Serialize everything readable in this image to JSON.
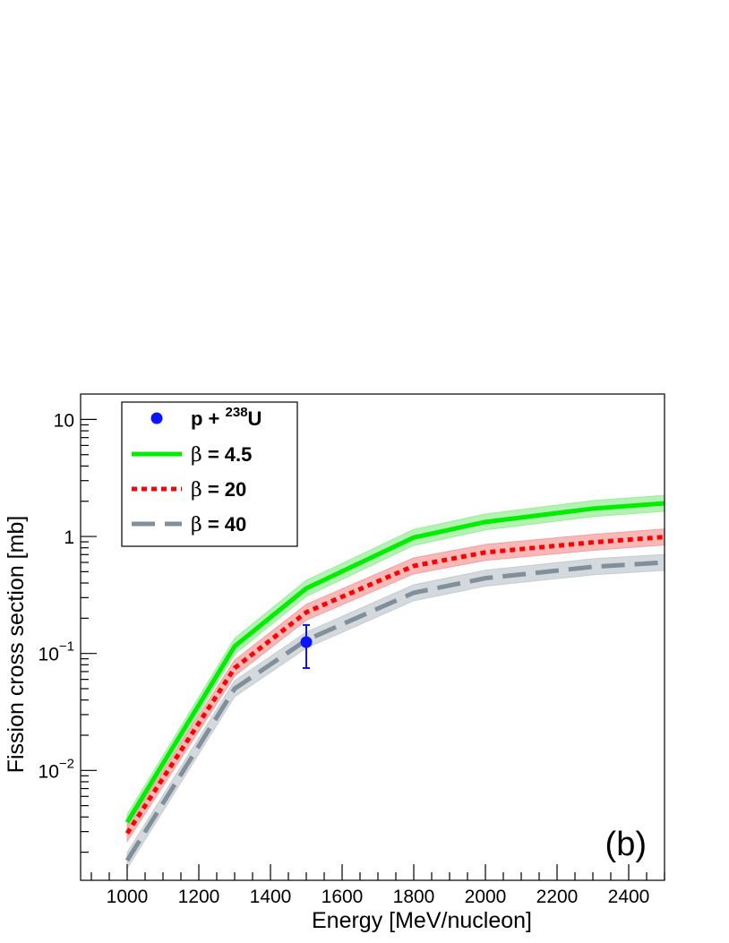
{
  "chart_data": {
    "type": "line",
    "xlabel": "Energy [MeV/nucleon]",
    "ylabel": "Fission cross section [mb]",
    "panel_label": "(b)",
    "xlim": [
      870,
      2500
    ],
    "ylim": [
      0.00115,
      16.5
    ],
    "y_scale": "log",
    "grid": false,
    "legend_position": "top-left",
    "x_ticks": [
      1000,
      1200,
      1400,
      1600,
      1800,
      2000,
      2200,
      2400
    ],
    "x_tick_labels": [
      "1000",
      "1200",
      "1400",
      "1600",
      "1800",
      "2000",
      "2200",
      "2400"
    ],
    "y_ticks": [
      {
        "value": 10,
        "base": "10",
        "exp": ""
      },
      {
        "value": 1,
        "base": "1",
        "exp": ""
      },
      {
        "value": 0.1,
        "base": "10",
        "exp": "−1"
      },
      {
        "value": 0.01,
        "base": "10",
        "exp": "−2"
      }
    ],
    "x": [
      1000,
      1300,
      1500,
      1800,
      2000,
      2300,
      2500
    ],
    "series": [
      {
        "name": "β = 4.5",
        "legend_symbol": "β",
        "legend_rest": " = 4.5",
        "style": "solid",
        "color": "#00ee00",
        "band_color": "#99ee99",
        "values": [
          0.0036,
          0.115,
          0.36,
          0.98,
          1.33,
          1.73,
          1.92
        ]
      },
      {
        "name": "β = 20",
        "legend_symbol": "β",
        "legend_rest": " = 20",
        "style": "dotted",
        "color": "#ff0000",
        "band_color": "#f5a0a0",
        "values": [
          0.0029,
          0.075,
          0.225,
          0.56,
          0.73,
          0.89,
          0.99
        ]
      },
      {
        "name": "β = 40",
        "legend_symbol": "β",
        "legend_rest": " = 40",
        "style": "dashed",
        "color": "#808f99",
        "band_color": "#c5ccd2",
        "values": [
          0.0017,
          0.05,
          0.13,
          0.33,
          0.44,
          0.55,
          0.6
        ]
      }
    ],
    "data_point": {
      "name_prefix": "p + ",
      "name_sup": "238",
      "name_suffix": "U",
      "color": "#0a14ff",
      "x": 1500,
      "y": 0.125,
      "y_low": 0.075,
      "y_high": 0.175
    }
  }
}
